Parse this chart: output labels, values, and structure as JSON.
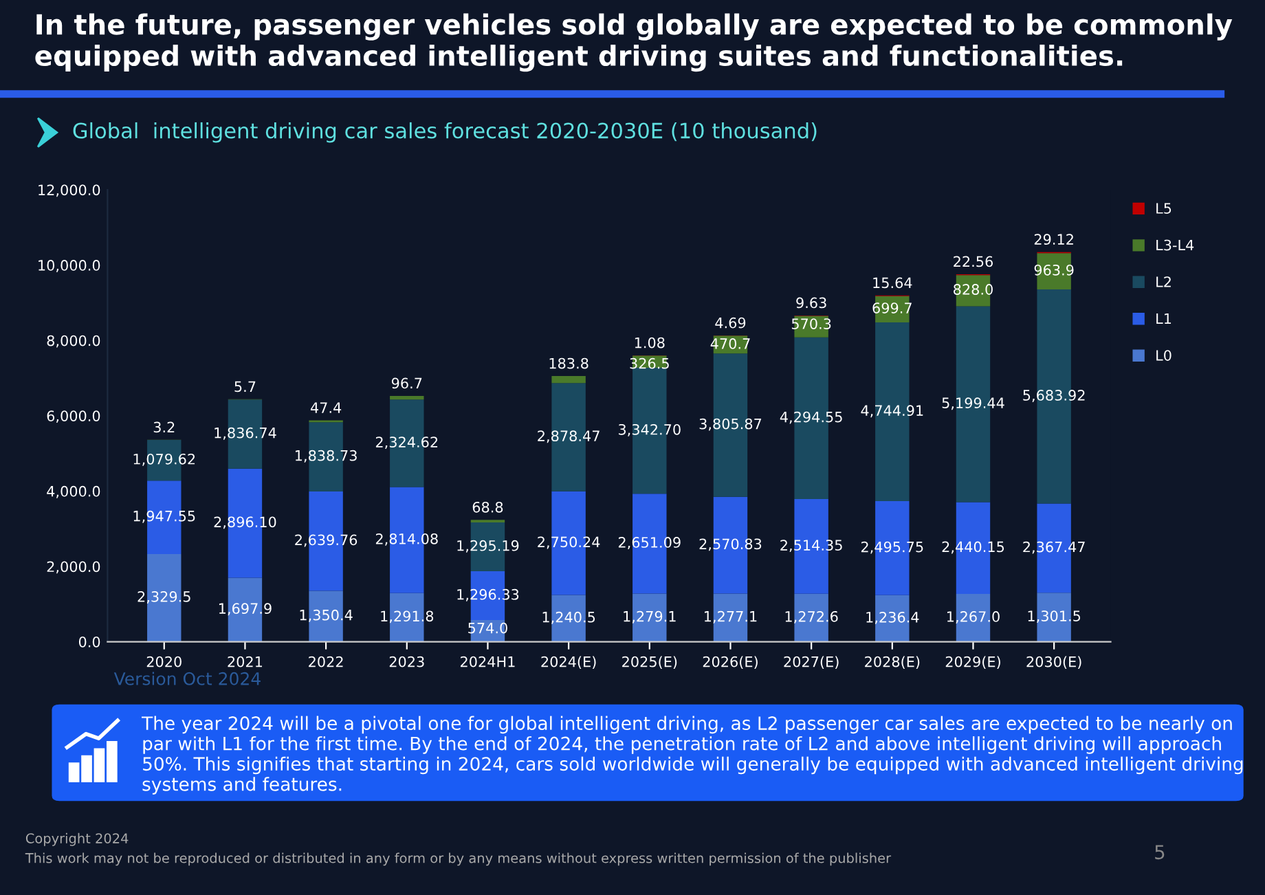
{
  "chart_data": {
    "type": "bar",
    "stacked": true,
    "title": "In the future, passenger vehicles sold globally are expected to be commonly equipped with advanced intelligent driving suites and functionalities.",
    "subtitle": "Global  intelligent driving car sales forecast 2020-2030E (10 thousand)",
    "categories": [
      "2020",
      "2021",
      "2022",
      "2023",
      "2024H1",
      "2024(E)",
      "2025(E)",
      "2026(E)",
      "2027(E)",
      "2028(E)",
      "2029(E)",
      "2030(E)"
    ],
    "series": [
      {
        "name": "L0",
        "color": "#4a78d0",
        "values": [
          2329.5,
          1697.9,
          1350.4,
          1291.8,
          574.0,
          1240.5,
          1279.1,
          1277.1,
          1272.6,
          1236.4,
          1267.0,
          1301.5
        ],
        "value_labels": [
          "2,329.5",
          "1,697.9",
          "1,350.4",
          "1,291.8",
          "574.0",
          "1,240.5",
          "1,279.1",
          "1,277.1",
          "1,272.6",
          "1,236.4",
          "1,267.0",
          "1,301.5"
        ]
      },
      {
        "name": "L1",
        "color": "#2b5ce6",
        "values": [
          1947.55,
          2896.1,
          2639.76,
          2814.08,
          1296.33,
          2750.24,
          2651.09,
          2570.83,
          2514.35,
          2495.75,
          2440.15,
          2367.47
        ],
        "value_labels": [
          "1,947.55",
          "2,896.10",
          "2,639.76",
          "2,814.08",
          "1,296.33",
          "2,750.24",
          "2,651.09",
          "2,570.83",
          "2,514.35",
          "2,495.75",
          "2,440.15",
          "2,367.47"
        ]
      },
      {
        "name": "L2",
        "color": "#1a4a60",
        "values": [
          1079.62,
          1836.74,
          1838.73,
          2324.62,
          1295.19,
          2878.47,
          3342.7,
          3805.87,
          4294.55,
          4744.91,
          5199.44,
          5683.92
        ],
        "value_labels": [
          "1,079.62",
          "1,836.74",
          "1,838.73",
          "2,324.62",
          "1,295.19",
          "2,878.47",
          "3,342.70",
          "3,805.87",
          "4,294.55",
          "4,744.91",
          "5,199.44",
          "5,683.92"
        ]
      },
      {
        "name": "L3-L4",
        "color": "#4a7a2a",
        "values": [
          3.2,
          5.7,
          47.4,
          96.7,
          68.8,
          183.8,
          326.5,
          470.7,
          570.3,
          699.7,
          828.0,
          963.9
        ],
        "value_labels": [
          "3.2",
          "5.7",
          "47.4",
          "96.7",
          "68.8",
          "183.8",
          "326.5",
          "470.7",
          "570.3",
          "699.7",
          "828.0",
          "963.9"
        ]
      },
      {
        "name": "L5",
        "color": "#c00000",
        "values": [
          null,
          null,
          null,
          null,
          null,
          null,
          1.08,
          4.69,
          9.63,
          15.64,
          22.56,
          29.12
        ],
        "value_labels": [
          null,
          null,
          null,
          null,
          null,
          null,
          "1.08",
          "4.69",
          "9.63",
          "15.64",
          "22.56",
          "29.12"
        ]
      }
    ],
    "ylim": [
      0,
      12000
    ],
    "yticks": [
      {
        "value": 0,
        "label": "0.0"
      },
      {
        "value": 2000,
        "label": "2,000.0"
      },
      {
        "value": 4000,
        "label": "4,000.0"
      },
      {
        "value": 6000,
        "label": "6,000.0"
      },
      {
        "value": 8000,
        "label": "8,000.0"
      },
      {
        "value": 10000,
        "label": "10,000.0"
      },
      {
        "value": 12000,
        "label": "12,000.0"
      }
    ],
    "grid": false,
    "legend": "top right",
    "annotations": [
      "Version Oct 2024",
      "The year 2024 will be a pivotal one for global intelligent driving, as L2 passenger car sales are expected to be nearly on par with L1 for the first time. By the end of 2024, the penetration rate of L2 and above intelligent driving will approach 50%. This signifies that starting in 2024, cars sold worldwide will generally be equipped with advanced intelligent driving systems and features.",
      "Copyright 2024",
      "This work may not be reproduced or distributed in any form or by any means without express written permission of the publisher",
      "5"
    ]
  }
}
